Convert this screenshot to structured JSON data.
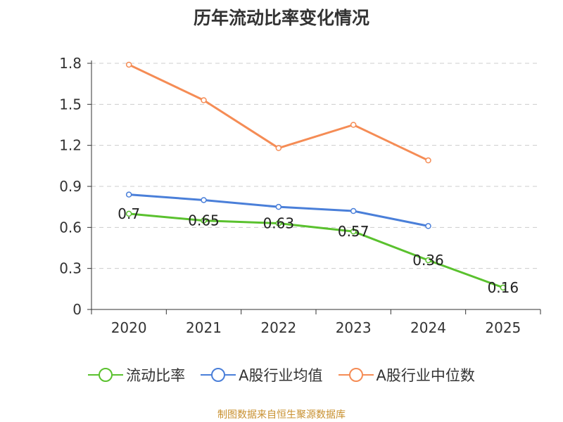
{
  "chart_data": {
    "type": "line",
    "title": "历年流动比率变化情况",
    "categories": [
      "2020",
      "2021",
      "2022",
      "2023",
      "2024",
      "2025"
    ],
    "y_ticks": [
      "0",
      "0.3",
      "0.6",
      "0.9",
      "1.2",
      "1.5",
      "1.8"
    ],
    "ylim": [
      0,
      1.8
    ],
    "grid": true,
    "legend_position": "bottom",
    "series": [
      {
        "name": "流动比率",
        "color": "#5ac12e",
        "values": [
          0.7,
          0.65,
          0.63,
          0.57,
          0.36,
          0.16
        ],
        "labels": [
          "0.7",
          "0.65",
          "0.63",
          "0.57",
          "0.36",
          "0.16"
        ]
      },
      {
        "name": "A股行业均值",
        "color": "#4a7fd9",
        "values": [
          0.84,
          0.8,
          0.75,
          0.72,
          0.61,
          null
        ]
      },
      {
        "name": "A股行业中位数",
        "color": "#f58c55",
        "values": [
          1.79,
          1.53,
          1.18,
          1.35,
          1.09,
          null
        ]
      }
    ]
  },
  "source": "制图数据来自恒生聚源数据库"
}
